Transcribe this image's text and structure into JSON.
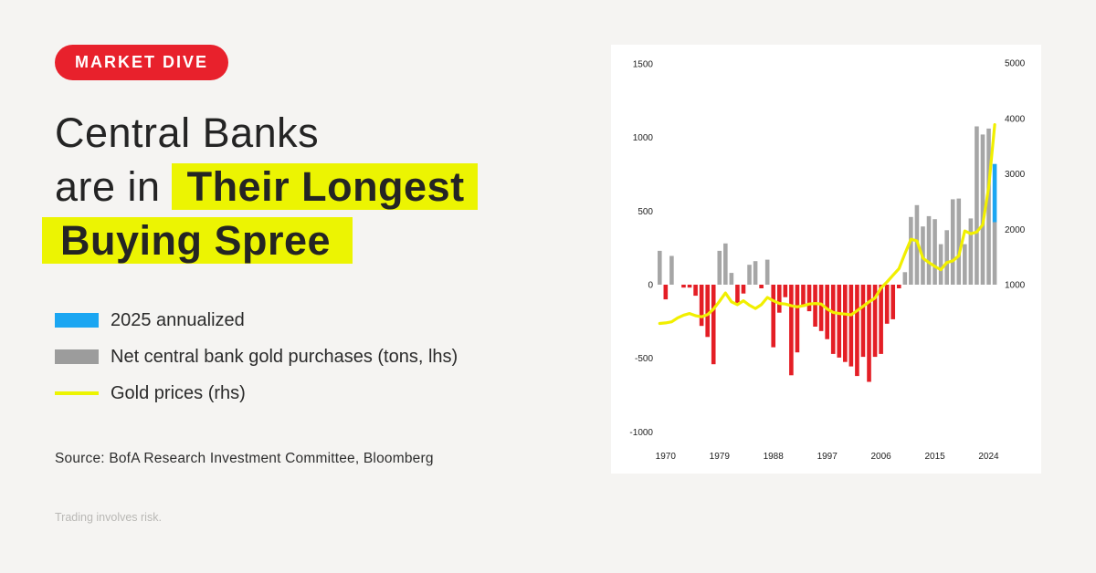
{
  "badge": {
    "label": "MARKET DIVE",
    "bg_color": "#E8212C",
    "text_color": "#FFFFFF"
  },
  "headline": {
    "line1": "Central Banks",
    "line2_normal": "are in",
    "line2_highlight": "Their Longest",
    "line3_highlight": "Buying Spree",
    "highlight_color": "#ECF402",
    "text_color": "#242424"
  },
  "legend": {
    "items": [
      {
        "label": "2025 annualized",
        "swatch_type": "rect",
        "color": "#1BA6F2"
      },
      {
        "label": "Net central bank gold purchases (tons, lhs)",
        "swatch_type": "rect",
        "color": "#9C9C9C"
      },
      {
        "label": "Gold prices (rhs)",
        "swatch_type": "line",
        "color": "#ECF402"
      }
    ]
  },
  "source_text": "Source: BofA Research Investment Committee, Bloomberg",
  "disclaimer_text": "Trading involves risk.",
  "chart_data": {
    "type": "bar",
    "title": "",
    "xlabel": "",
    "ylabel_left": "Net central bank gold purchases (tons)",
    "ylabel_right": "Gold price",
    "grid": false,
    "legend_position": "outside-left",
    "years": [
      1969,
      1970,
      1971,
      1972,
      1973,
      1974,
      1975,
      1976,
      1977,
      1978,
      1979,
      1980,
      1981,
      1982,
      1983,
      1984,
      1985,
      1986,
      1987,
      1988,
      1989,
      1990,
      1991,
      1992,
      1993,
      1994,
      1995,
      1996,
      1997,
      1998,
      1999,
      2000,
      2001,
      2002,
      2003,
      2004,
      2005,
      2006,
      2007,
      2008,
      2009,
      2010,
      2011,
      2012,
      2013,
      2014,
      2015,
      2016,
      2017,
      2018,
      2019,
      2020,
      2021,
      2022,
      2023,
      2024,
      2025
    ],
    "series": [
      {
        "name": "Net central bank gold purchases (tons, lhs)",
        "type": "bar",
        "axis": "left",
        "values": [
          230,
          -100,
          195,
          0,
          -20,
          -20,
          -75,
          -280,
          -355,
          -540,
          230,
          280,
          80,
          -125,
          -60,
          135,
          160,
          -25,
          170,
          -425,
          -190,
          -85,
          -615,
          -460,
          -150,
          -180,
          -285,
          -315,
          -370,
          -470,
          -495,
          -525,
          -555,
          -620,
          -490,
          -660,
          -490,
          -470,
          -265,
          -235,
          -25,
          85,
          460,
          540,
          395,
          465,
          445,
          275,
          370,
          580,
          585,
          275,
          450,
          1075,
          1020,
          1060,
          820
        ]
      },
      {
        "name": "Gold prices (rhs)",
        "type": "line",
        "axis": "right",
        "values": [
          300,
          310,
          330,
          400,
          450,
          480,
          440,
          420,
          460,
          560,
          700,
          850,
          690,
          640,
          710,
          630,
          570,
          640,
          770,
          710,
          660,
          650,
          620,
          600,
          620,
          650,
          660,
          650,
          560,
          500,
          480,
          470,
          455,
          530,
          610,
          690,
          760,
          940,
          1050,
          1170,
          1290,
          1560,
          1820,
          1790,
          1480,
          1400,
          1330,
          1270,
          1400,
          1430,
          1520,
          1970,
          1920,
          1950,
          2080,
          2760,
          3890
        ]
      }
    ],
    "annualized_2025": {
      "year": 2025,
      "actual_to_date": 425,
      "annualized_total": 820
    },
    "bar_positive_color": "#A6A6A6",
    "bar_negative_color": "#E41E25",
    "bar_2025_color": "#1BA6F2",
    "line_color": "#F1EF00",
    "left_axis_ticks": [
      1500,
      1000,
      500,
      0,
      -500,
      -1000
    ],
    "left_axis_range": [
      -1000,
      1500
    ],
    "right_axis_ticks": [
      5000,
      4000,
      3000,
      2000,
      1000
    ],
    "right_axis_alignment": "right-axis 1000 aligns with left-axis 0; right-axis 5000 aligns with left-axis 1500",
    "x_axis_ticks": [
      1970,
      1979,
      1988,
      1997,
      2006,
      2015,
      2024
    ]
  }
}
